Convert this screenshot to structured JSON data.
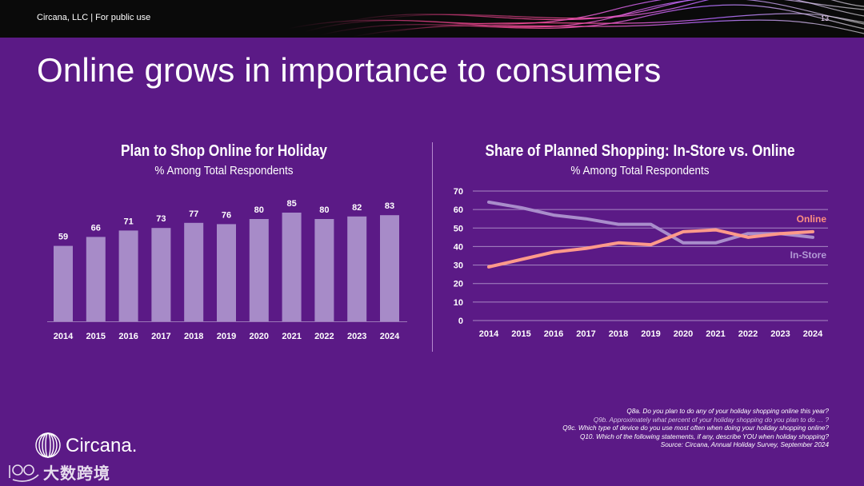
{
  "header": {
    "company": "Circana, LLC |  For public use",
    "page_number": "13"
  },
  "slide": {
    "title": "Online grows in importance to consumers"
  },
  "colors": {
    "background": "#5b1a86",
    "bar": "#a78bc8",
    "online": "#ff9a8a",
    "instore": "#a98dcb",
    "online_label": "#ff8f80",
    "instore_label": "#b39ad6"
  },
  "chart_data": [
    {
      "type": "bar",
      "title": "Plan to Shop Online for Holiday",
      "subtitle": "% Among Total Respondents",
      "categories": [
        "2014",
        "2015",
        "2016",
        "2017",
        "2018",
        "2019",
        "2020",
        "2021",
        "2022",
        "2023",
        "2024"
      ],
      "values": [
        59,
        66,
        71,
        73,
        77,
        76,
        80,
        85,
        80,
        82,
        83
      ],
      "ylim": [
        0,
        100
      ],
      "data_labels": true
    },
    {
      "type": "line",
      "title": "Share of Planned Shopping:  In-Store vs. Online",
      "subtitle": "% Among Total Respondents",
      "x": [
        "2014",
        "2015",
        "2016",
        "2017",
        "2018",
        "2019",
        "2020",
        "2021",
        "2022",
        "2023",
        "2024"
      ],
      "yticks": [
        "0",
        "10",
        "20",
        "30",
        "40",
        "50",
        "60",
        "70"
      ],
      "ylim": [
        0,
        70
      ],
      "grid": true,
      "series": [
        {
          "name": "Online",
          "values": [
            29,
            33,
            37,
            39,
            42,
            41,
            48,
            49,
            45,
            47,
            48
          ]
        },
        {
          "name": "In-Store",
          "values": [
            64,
            61,
            57,
            55,
            52,
            52,
            42,
            42,
            47,
            47,
            45
          ]
        }
      ]
    }
  ],
  "notes": [
    "Q8a. Do you plan to do any of your holiday shopping online this year?",
    "Q9b. Approximately what percent of your holiday shopping do you plan to do … ?",
    "Q9c. Which type of device do you use most often when doing your holiday shopping online?",
    "Q10. Which of the following statements, if any, describe YOU when holiday shopping?",
    "Source: Circana, Annual Holiday Survey, September 2024"
  ],
  "logo": {
    "name": "Circana."
  },
  "watermark": {
    "text": "大数跨境"
  }
}
